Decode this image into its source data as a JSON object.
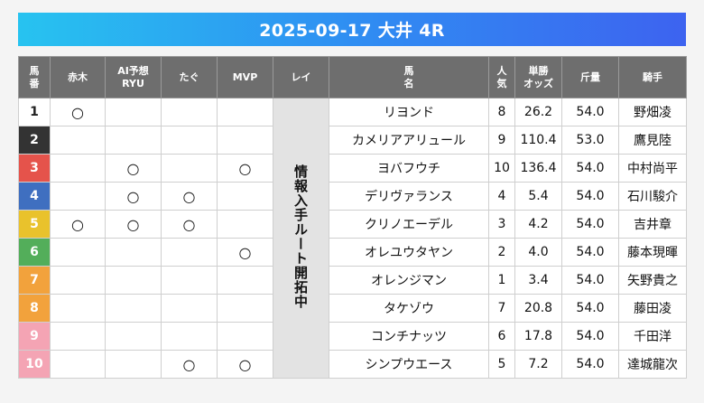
{
  "title": "2025-09-17 大井 4R",
  "headers": {
    "num": [
      "馬",
      "番"
    ],
    "akagi": "赤木",
    "ai": [
      "AI予想",
      "RYU"
    ],
    "tagu": "たぐ",
    "mvp": "MVP",
    "rei": "レイ",
    "horse": [
      "馬",
      "名"
    ],
    "pop": [
      "人",
      "気"
    ],
    "odds": [
      "単勝",
      "オッズ"
    ],
    "weight": "斤量",
    "jockey": "騎手"
  },
  "rei_note": "情報入手ルート開拓中",
  "mark_symbol": "○",
  "colors": {
    "frame1": "#ffffff",
    "frame2": "#333333",
    "frame3": "#e5534b",
    "frame4": "#3f6fc0",
    "frame5": "#e9c22c",
    "frame6": "#53ae5a",
    "frame7": "#f2a23c",
    "frame8": "#f2a23c",
    "frame9": "#f4a4b4",
    "frame10": "#f4a4b4"
  },
  "rows": [
    {
      "num": "1",
      "akagi": "○",
      "ai": "",
      "tagu": "",
      "mvp": "",
      "horse": "リヨンド",
      "pop": "8",
      "odds": "26.2",
      "weight": "54.0",
      "jockey": "野畑凌"
    },
    {
      "num": "2",
      "akagi": "",
      "ai": "",
      "tagu": "",
      "mvp": "",
      "horse": "カメリアアリュール",
      "pop": "9",
      "odds": "110.4",
      "weight": "53.0",
      "jockey": "鷹見陸"
    },
    {
      "num": "3",
      "akagi": "",
      "ai": "○",
      "tagu": "",
      "mvp": "○",
      "horse": "ヨバフウチ",
      "pop": "10",
      "odds": "136.4",
      "weight": "54.0",
      "jockey": "中村尚平"
    },
    {
      "num": "4",
      "akagi": "",
      "ai": "○",
      "tagu": "○",
      "mvp": "",
      "horse": "デリヴァランス",
      "pop": "4",
      "odds": "5.4",
      "weight": "54.0",
      "jockey": "石川駿介"
    },
    {
      "num": "5",
      "akagi": "○",
      "ai": "○",
      "tagu": "○",
      "mvp": "",
      "horse": "クリノエーデル",
      "pop": "3",
      "odds": "4.2",
      "weight": "54.0",
      "jockey": "吉井章"
    },
    {
      "num": "6",
      "akagi": "",
      "ai": "",
      "tagu": "",
      "mvp": "○",
      "horse": "オレユウタヤン",
      "pop": "2",
      "odds": "4.0",
      "weight": "54.0",
      "jockey": "藤本現暉"
    },
    {
      "num": "7",
      "akagi": "",
      "ai": "",
      "tagu": "",
      "mvp": "",
      "horse": "オレンジマン",
      "pop": "1",
      "odds": "3.4",
      "weight": "54.0",
      "jockey": "矢野貴之"
    },
    {
      "num": "8",
      "akagi": "",
      "ai": "",
      "tagu": "",
      "mvp": "",
      "horse": "タケゾウ",
      "pop": "7",
      "odds": "20.8",
      "weight": "54.0",
      "jockey": "藤田凌"
    },
    {
      "num": "9",
      "akagi": "",
      "ai": "",
      "tagu": "",
      "mvp": "",
      "horse": "コンチナッツ",
      "pop": "6",
      "odds": "17.8",
      "weight": "54.0",
      "jockey": "千田洋"
    },
    {
      "num": "10",
      "akagi": "",
      "ai": "",
      "tagu": "○",
      "mvp": "○",
      "horse": "シンプウエース",
      "pop": "5",
      "odds": "7.2",
      "weight": "54.0",
      "jockey": "達城龍次"
    }
  ]
}
